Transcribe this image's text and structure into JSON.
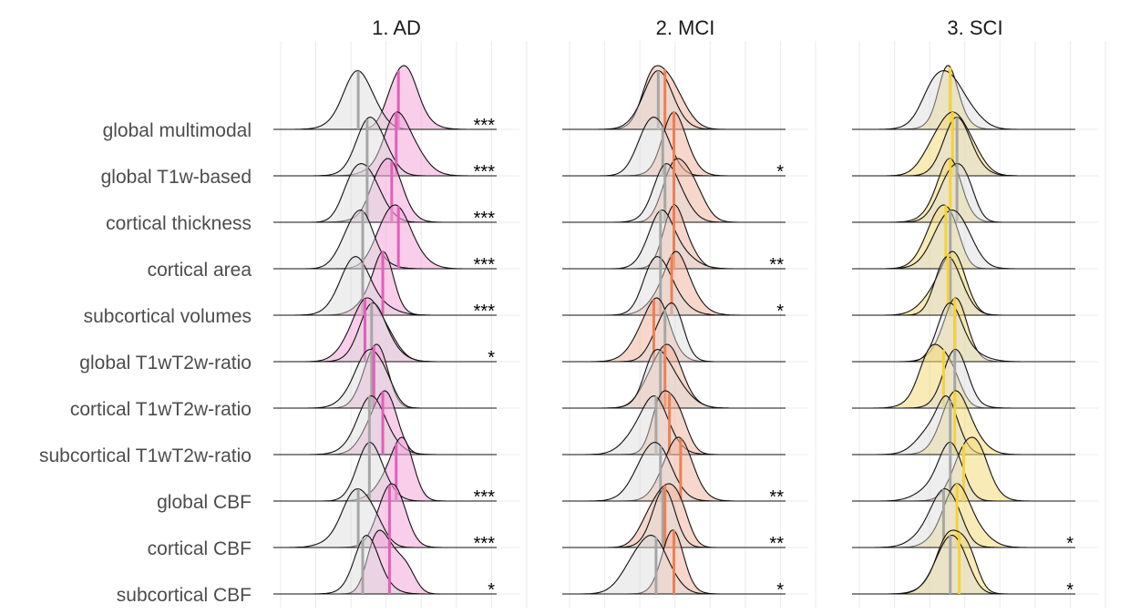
{
  "chart_data": {
    "type": "ridgeline",
    "row_labels": [
      "global multimodal",
      "global T1w-based",
      "cortical thickness",
      "cortical area",
      "subcortical volumes",
      "global T1wT2w-ratio",
      "cortical T1wT2w-ratio",
      "subcortical T1wT2w-ratio",
      "global CBF",
      "cortical CBF",
      "subcortical CBF"
    ],
    "reference_color": "#d9d9d9",
    "reference_median_color": "#a6a6a6",
    "grid": true,
    "panels": [
      {
        "title": "1. AD",
        "color": "#f2a6da",
        "median_color": "#e060b8",
        "ref_medians": [
          0.38,
          0.42,
          0.42,
          0.4,
          0.4,
          0.44,
          0.44,
          0.43,
          0.43,
          0.38,
          0.4
        ],
        "group_medians": [
          0.56,
          0.55,
          0.53,
          0.56,
          0.49,
          0.41,
          0.45,
          0.49,
          0.55,
          0.52,
          0.52
        ],
        "significance": [
          "***",
          "***",
          "***",
          "***",
          "***",
          "*",
          "",
          "",
          "***",
          "***",
          "*"
        ]
      },
      {
        "title": "2. MCI",
        "color": "#f0b7a0",
        "median_color": "#ee7f53",
        "ref_medians": [
          0.43,
          0.45,
          0.46,
          0.44,
          0.44,
          0.46,
          0.44,
          0.42,
          0.44,
          0.45,
          0.42
        ],
        "group_medians": [
          0.46,
          0.5,
          0.5,
          0.5,
          0.49,
          0.41,
          0.46,
          0.48,
          0.53,
          0.46,
          0.5
        ],
        "significance": [
          "",
          "*",
          "",
          "**",
          "*",
          "",
          "",
          "",
          "**",
          "**",
          "*"
        ]
      },
      {
        "title": "3. SCI",
        "color": "#f2db7a",
        "median_color": "#f5d23b",
        "ref_medians": [
          0.44,
          0.47,
          0.47,
          0.44,
          0.44,
          0.46,
          0.46,
          0.44,
          0.44,
          0.41,
          0.44
        ],
        "group_medians": [
          0.44,
          0.45,
          0.44,
          0.42,
          0.43,
          0.46,
          0.41,
          0.46,
          0.5,
          0.47,
          0.48
        ],
        "significance": [
          "",
          "",
          "",
          "",
          "",
          "",
          "",
          "",
          "",
          "*",
          "*"
        ]
      }
    ]
  }
}
